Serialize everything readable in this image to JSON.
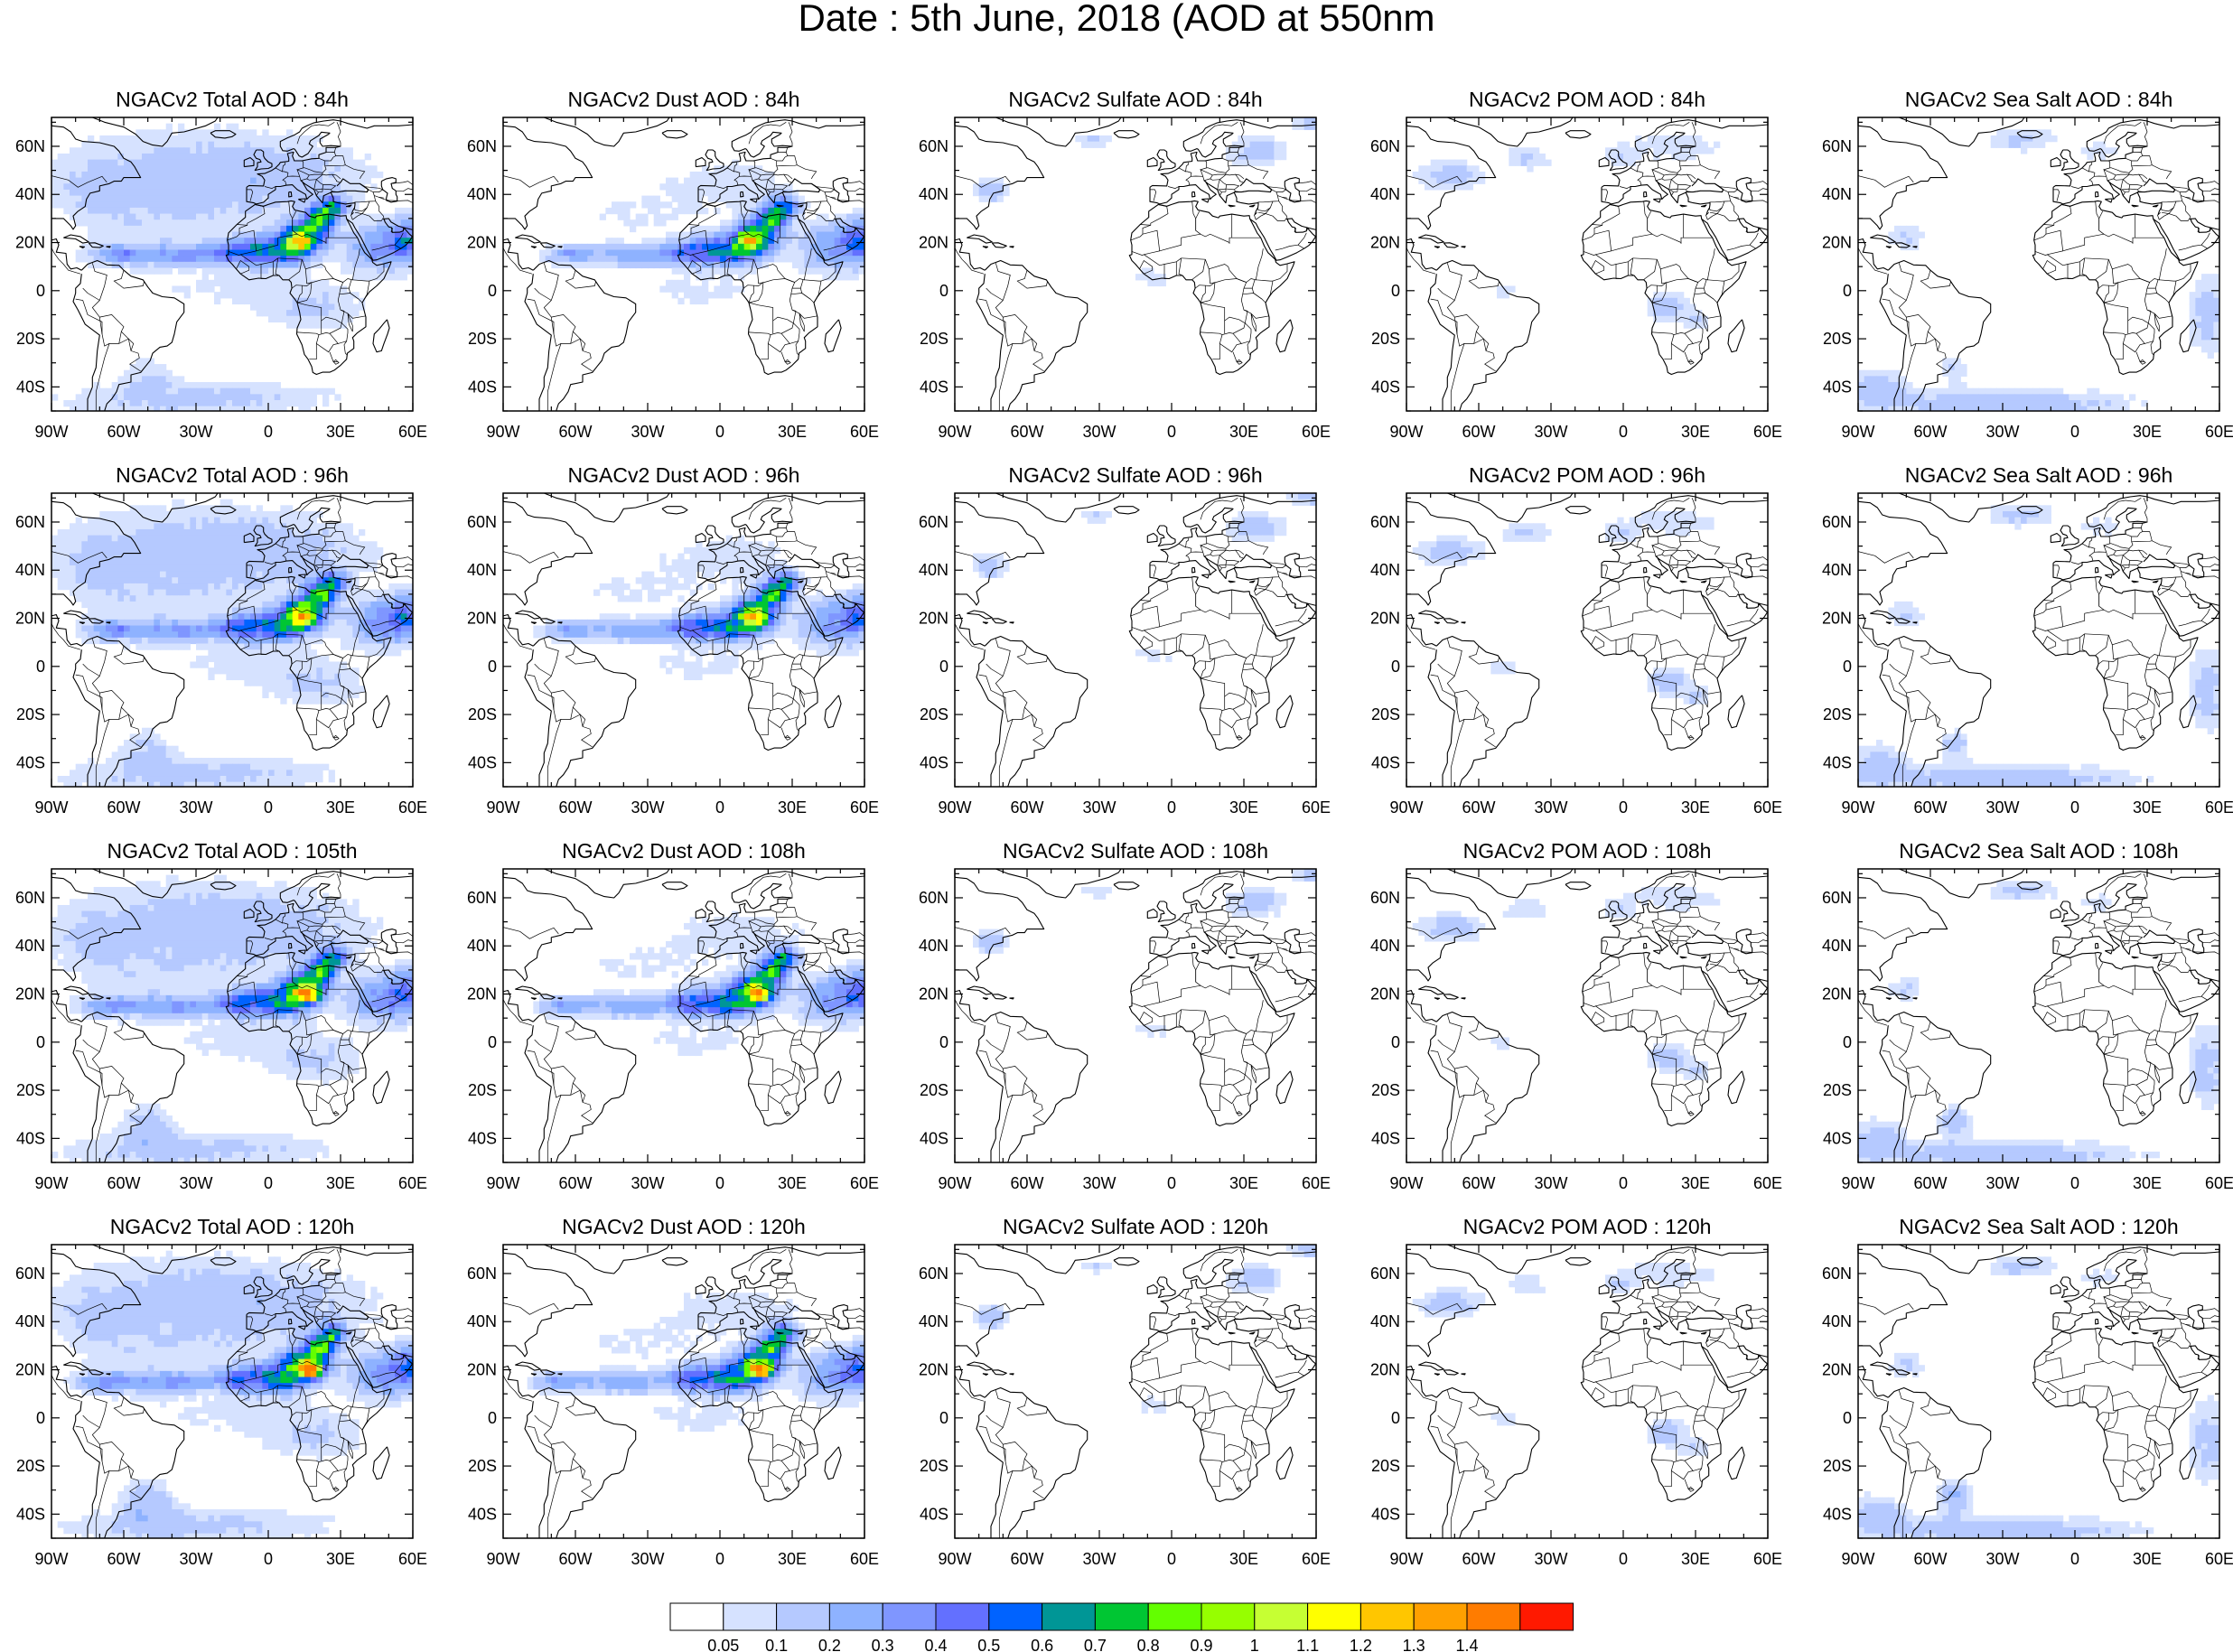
{
  "title": "Date : 5th June, 2018 (AOD at 550nm",
  "panels": [
    {
      "title": "NGACv2 Total AOD : 84h",
      "field": "total"
    },
    {
      "title": "NGACv2 Dust AOD : 84h",
      "field": "dust"
    },
    {
      "title": "NGACv2 Sulfate AOD : 84h",
      "field": "sulfate"
    },
    {
      "title": "NGACv2 POM AOD : 84h",
      "field": "pom"
    },
    {
      "title": "NGACv2 Sea Salt AOD : 84h",
      "field": "seasalt"
    },
    {
      "title": "NGACv2 Total AOD : 96h",
      "field": "total"
    },
    {
      "title": "NGACv2 Dust AOD : 96h",
      "field": "dust"
    },
    {
      "title": "NGACv2 Sulfate AOD : 96h",
      "field": "sulfate"
    },
    {
      "title": "NGACv2 POM AOD : 96h",
      "field": "pom"
    },
    {
      "title": "NGACv2 Sea Salt AOD : 96h",
      "field": "seasalt"
    },
    {
      "title": "NGACv2 Total AOD : 105th",
      "field": "total"
    },
    {
      "title": "NGACv2 Dust AOD : 108h",
      "field": "dust"
    },
    {
      "title": "NGACv2 Sulfate AOD : 108h",
      "field": "sulfate"
    },
    {
      "title": "NGACv2 POM AOD : 108h",
      "field": "pom"
    },
    {
      "title": "NGACv2 Sea Salt AOD : 108h",
      "field": "seasalt"
    },
    {
      "title": "NGACv2 Total AOD : 120h",
      "field": "total"
    },
    {
      "title": "NGACv2 Dust AOD : 120h",
      "field": "dust"
    },
    {
      "title": "NGACv2 Sulfate AOD : 120h",
      "field": "sulfate"
    },
    {
      "title": "NGACv2 POM AOD : 120h",
      "field": "pom"
    },
    {
      "title": "NGACv2 Sea Salt  AOD : 120h",
      "field": "seasalt"
    }
  ],
  "map_extent": {
    "lon": [
      -90,
      60
    ],
    "lat": [
      -50,
      72
    ]
  },
  "lon_ticks": [
    {
      "value": -90,
      "label": "90W"
    },
    {
      "value": -60,
      "label": "60W"
    },
    {
      "value": -30,
      "label": "30W"
    },
    {
      "value": 0,
      "label": "0"
    },
    {
      "value": 30,
      "label": "30E"
    },
    {
      "value": 60,
      "label": "60E"
    }
  ],
  "lat_ticks": [
    {
      "value": 60,
      "label": "60N"
    },
    {
      "value": 40,
      "label": "40N"
    },
    {
      "value": 20,
      "label": "20N"
    },
    {
      "value": 0,
      "label": "0"
    },
    {
      "value": -20,
      "label": "20S"
    },
    {
      "value": -40,
      "label": "40S"
    }
  ],
  "colorbar": {
    "labels": [
      "0.05",
      "0.1",
      "0.2",
      "0.3",
      "0.4",
      "0.5",
      "0.6",
      "0.7",
      "0.8",
      "0.9",
      "1",
      "1.1",
      "1.2",
      "1.3",
      "1.4"
    ],
    "colors": [
      "#ffffff",
      "#d6e2ff",
      "#b5c9ff",
      "#8eb2ff",
      "#7f96ff",
      "#6370ff",
      "#0063ff",
      "#009696",
      "#00c633",
      "#63ff00",
      "#96ff00",
      "#c6ff33",
      "#ffff00",
      "#ffc600",
      "#ffa000",
      "#ff7c00",
      "#ff1900"
    ]
  }
}
